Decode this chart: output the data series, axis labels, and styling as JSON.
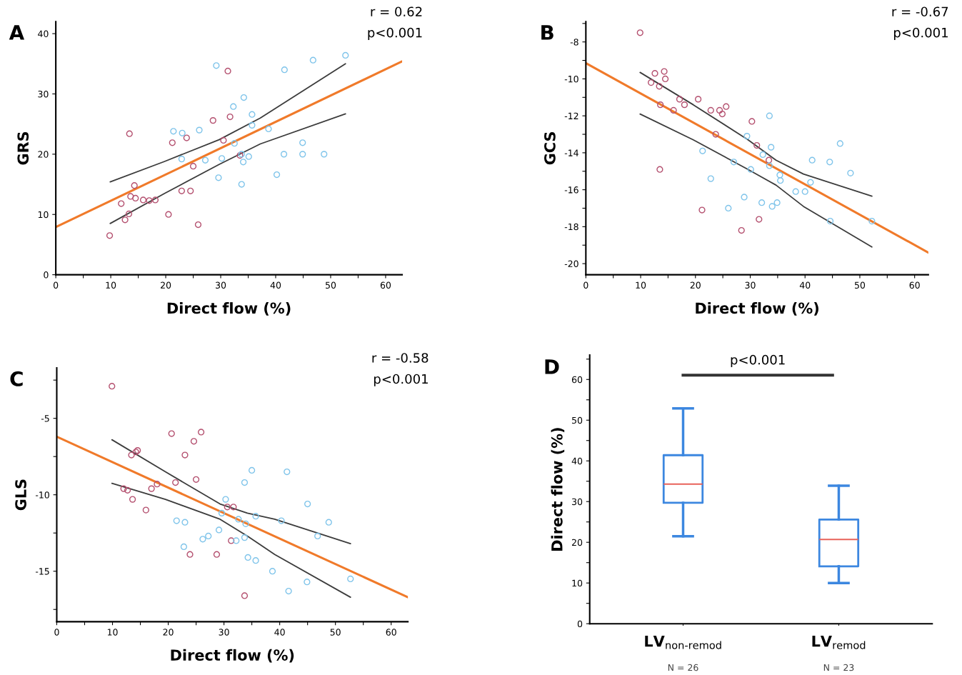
{
  "chart_data": [
    {
      "type": "scatter",
      "title": "A",
      "xlabel": "Direct flow (%)",
      "ylabel": "GRS",
      "annotations": [
        "r = 0.62",
        "p<0.001"
      ],
      "xlim": [
        0,
        63
      ],
      "ylim": [
        0,
        42
      ],
      "xticks": [
        0,
        {
          "value": 5,
          "label": null
        },
        10,
        {
          "value": 15,
          "label": null
        },
        20,
        {
          "value": 25,
          "label": null
        },
        30,
        {
          "value": 35,
          "label": null
        },
        40,
        {
          "value": 45,
          "label": null
        },
        50,
        {
          "value": 55,
          "label": null
        },
        60
      ],
      "yticks": [
        0,
        10,
        20,
        30,
        40
      ],
      "series": [
        {
          "type": "scatter",
          "marker": "circle",
          "color": "#b4506f",
          "x": [
            9.8,
            11.9,
            12.6,
            13.3,
            13.4,
            13.6,
            14.3,
            14.5,
            15.9,
            17.0,
            18.1,
            20.5,
            21.2,
            22.9,
            23.8,
            24.5,
            25.0,
            25.9,
            28.6,
            30.5,
            31.3,
            31.7,
            33.5
          ],
          "values": [
            6.5,
            11.8,
            9.1,
            10.1,
            23.4,
            13.0,
            14.8,
            12.7,
            12.4,
            12.3,
            12.4,
            10.0,
            21.9,
            13.9,
            22.7,
            13.9,
            18.0,
            8.3,
            25.6,
            22.3,
            33.8,
            26.2,
            19.8
          ]
        },
        {
          "type": "scatter",
          "marker": "circle",
          "color": "#7fc4ea",
          "x": [
            21.4,
            22.9,
            23.0,
            26.1,
            27.2,
            29.2,
            29.6,
            30.2,
            32.3,
            32.5,
            33.8,
            33.8,
            34.1,
            34.2,
            35.1,
            35.7,
            35.7,
            38.7,
            40.2,
            41.5,
            41.6,
            44.9,
            44.9,
            46.8,
            48.8,
            52.7
          ],
          "values": [
            23.8,
            19.2,
            23.5,
            24.0,
            19.0,
            34.7,
            16.1,
            19.3,
            27.9,
            21.8,
            20.0,
            15.0,
            18.7,
            29.4,
            19.6,
            26.6,
            24.8,
            24.2,
            16.6,
            20.0,
            34.0,
            21.9,
            20.0,
            35.6,
            20.0,
            36.4
          ]
        },
        {
          "type": "line",
          "color": "#f07a2a",
          "x": [
            0,
            63
          ],
          "values": [
            7.9,
            35.4
          ]
        },
        {
          "type": "line",
          "color": "#3c3c3c",
          "x": [
            9.9,
            19.8,
            29.7,
            37.2,
            52.7
          ],
          "values": [
            15.4,
            18.8,
            22.4,
            26.0,
            35.0
          ]
        },
        {
          "type": "line",
          "color": "#3c3c3c",
          "x": [
            9.9,
            19.8,
            29.7,
            37.2,
            52.7
          ],
          "values": [
            8.5,
            13.5,
            18.3,
            21.7,
            26.7
          ]
        }
      ]
    },
    {
      "type": "scatter",
      "title": "B",
      "xlabel": "Direct flow (%)",
      "ylabel": "GCS",
      "annotations": [
        "r = -0.67",
        "p<0.001"
      ],
      "xlim": [
        0,
        62.5
      ],
      "ylim": [
        -20.6,
        -6.9
      ],
      "xticks": [
        0,
        {
          "value": 5,
          "label": null
        },
        10,
        {
          "value": 15,
          "label": null
        },
        20,
        {
          "value": 25,
          "label": null
        },
        30,
        {
          "value": 35,
          "label": null
        },
        40,
        {
          "value": 45,
          "label": null
        },
        50,
        {
          "value": 55,
          "label": null
        },
        60
      ],
      "yticks": [
        {
          "value": -7,
          "label": null
        },
        -8,
        {
          "value": -9,
          "label": null
        },
        -10,
        {
          "value": -11,
          "label": null
        },
        -12,
        {
          "value": -13,
          "label": null
        },
        -14,
        {
          "value": -15,
          "label": null
        },
        -16,
        {
          "value": -17,
          "label": null
        },
        -18,
        {
          "value": -19,
          "label": null
        },
        -20
      ],
      "series": [
        {
          "type": "scatter",
          "marker": "circle",
          "color": "#b4506f",
          "x": [
            9.9,
            11.9,
            12.6,
            13.4,
            13.6,
            13.5,
            14.3,
            14.5,
            16.0,
            17.1,
            18.0,
            20.5,
            21.2,
            22.8,
            23.7,
            24.4,
            24.9,
            25.6,
            28.4,
            30.3,
            31.2,
            31.6,
            33.4
          ],
          "values": [
            -7.5,
            -10.2,
            -9.7,
            -10.4,
            -11.4,
            -14.9,
            -9.6,
            -10.0,
            -11.7,
            -11.1,
            -11.4,
            -11.1,
            -17.1,
            -11.7,
            -13.0,
            -11.7,
            -11.9,
            -11.5,
            -18.2,
            -12.3,
            -13.6,
            -17.6,
            -14.4
          ]
        },
        {
          "type": "scatter",
          "marker": "circle",
          "color": "#7fc4ea",
          "x": [
            21.3,
            22.8,
            26.0,
            27.0,
            28.9,
            29.4,
            30.1,
            32.1,
            32.3,
            33.5,
            33.5,
            33.8,
            34.0,
            34.9,
            35.4,
            35.5,
            38.3,
            40.0,
            41.0,
            41.3,
            44.5,
            44.6,
            46.4,
            48.3,
            52.2
          ],
          "values": [
            -13.9,
            -15.4,
            -17.0,
            -14.5,
            -16.4,
            -13.1,
            -14.9,
            -16.7,
            -14.1,
            -12.0,
            -14.7,
            -13.7,
            -16.9,
            -16.7,
            -15.2,
            -15.5,
            -16.1,
            -16.1,
            -15.6,
            -14.4,
            -14.5,
            -17.7,
            -13.5,
            -15.1,
            -17.7
          ]
        },
        {
          "type": "line",
          "color": "#f07a2a",
          "x": [
            0,
            62.5
          ],
          "values": [
            -9.15,
            -19.4
          ]
        },
        {
          "type": "line",
          "color": "#3c3c3c",
          "x": [
            9.9,
            19.6,
            29.6,
            34.7,
            39.7,
            52.2
          ],
          "values": [
            -9.65,
            -11.4,
            -13.3,
            -14.4,
            -15.15,
            -16.35
          ]
        },
        {
          "type": "line",
          "color": "#3c3c3c",
          "x": [
            9.9,
            19.6,
            29.6,
            34.7,
            39.7,
            52.2
          ],
          "values": [
            -11.9,
            -13.3,
            -14.9,
            -15.75,
            -16.9,
            -19.1
          ]
        }
      ]
    },
    {
      "type": "scatter",
      "title": "C",
      "xlabel": "Direct flow (%)",
      "ylabel": "GLS",
      "annotations": [
        "r = -0.58",
        "p<0.001"
      ],
      "xlim": [
        0,
        63
      ],
      "ylim": [
        -18.3,
        -1.7
      ],
      "xticks": [
        0,
        {
          "value": 5,
          "label": null
        },
        10,
        {
          "value": 15,
          "label": null
        },
        20,
        {
          "value": 25,
          "label": null
        },
        30,
        {
          "value": 35,
          "label": null
        },
        40,
        {
          "value": 45,
          "label": null
        },
        50,
        {
          "value": 55,
          "label": null
        },
        60
      ],
      "yticks": [
        {
          "value": -2.5,
          "label": null
        },
        -5,
        {
          "value": -7.5,
          "label": null
        },
        -10,
        {
          "value": -12.5,
          "label": null
        },
        -15,
        {
          "value": -17.5,
          "label": null
        }
      ],
      "series": [
        {
          "type": "scatter",
          "marker": "circle",
          "color": "#b4506f",
          "x": [
            9.9,
            12.0,
            12.7,
            13.4,
            13.6,
            14.2,
            14.5,
            16.0,
            17.0,
            18.0,
            20.6,
            21.3,
            23.0,
            23.9,
            24.6,
            25.0,
            25.9,
            28.7,
            30.6,
            31.7,
            31.3,
            33.7
          ],
          "values": [
            -2.9,
            -9.6,
            -9.7,
            -7.4,
            -10.3,
            -7.2,
            -7.1,
            -11.0,
            -9.6,
            -9.3,
            -6.0,
            -9.2,
            -7.4,
            -13.9,
            -6.5,
            -9.0,
            -5.9,
            -13.9,
            -10.8,
            -10.8,
            -13.0,
            -16.6
          ]
        },
        {
          "type": "scatter",
          "marker": "circle",
          "color": "#7fc4ea",
          "x": [
            21.5,
            23.0,
            22.8,
            26.2,
            27.2,
            29.1,
            30.3,
            29.6,
            32.2,
            32.6,
            33.7,
            33.7,
            33.9,
            34.3,
            35.0,
            35.7,
            35.7,
            38.7,
            40.3,
            41.3,
            41.6,
            44.9,
            45.0,
            46.8,
            48.8,
            52.7
          ],
          "values": [
            -11.7,
            -11.8,
            -13.4,
            -12.9,
            -12.7,
            -12.3,
            -10.3,
            -11.2,
            -13.0,
            -11.6,
            -9.2,
            -12.8,
            -11.9,
            -14.1,
            -8.4,
            -14.3,
            -11.4,
            -15.0,
            -11.7,
            -8.5,
            -16.3,
            -15.7,
            -10.6,
            -12.7,
            -11.8,
            -15.5
          ]
        },
        {
          "type": "line",
          "color": "#f07a2a",
          "x": [
            0,
            63
          ],
          "values": [
            -6.2,
            -16.7
          ]
        },
        {
          "type": "line",
          "color": "#3c3c3c",
          "x": [
            9.9,
            19.5,
            29.3,
            34.2,
            39.1,
            52.7
          ],
          "values": [
            -6.4,
            -8.5,
            -10.6,
            -11.2,
            -11.6,
            -13.2
          ]
        },
        {
          "type": "line",
          "color": "#3c3c3c",
          "x": [
            9.9,
            19.5,
            29.3,
            34.2,
            39.1,
            52.7
          ],
          "values": [
            -9.25,
            -10.3,
            -11.6,
            -12.7,
            -13.9,
            -16.7
          ]
        }
      ]
    },
    {
      "type": "box",
      "title": "D",
      "ylabel": "Direct flow (%)",
      "categories": [
        "LV$_{non-remod}$",
        "LV$_{remod}$"
      ],
      "annotations": [
        "p<0.001",
        "N = 26",
        "N = 23"
      ],
      "ylim": [
        0,
        66
      ],
      "yticks": [
        0,
        {
          "value": 5,
          "label": null
        },
        10,
        {
          "value": 15,
          "label": null
        },
        20,
        {
          "value": 25,
          "label": null
        },
        30,
        {
          "value": 35,
          "label": null
        },
        40,
        {
          "value": 45,
          "label": null
        },
        50,
        {
          "value": 55,
          "label": null
        },
        60,
        {
          "value": 65,
          "label": null
        }
      ],
      "series": [
        {
          "color": "#3c87e0",
          "boxes": [
            {
              "low": 21.5,
              "q1": 29.7,
              "median": 34.3,
              "q3": 41.4,
              "high": 52.9
            },
            {
              "low": 10.0,
              "q1": 14.1,
              "median": 20.7,
              "q3": 25.6,
              "high": 33.9
            }
          ]
        }
      ]
    }
  ]
}
